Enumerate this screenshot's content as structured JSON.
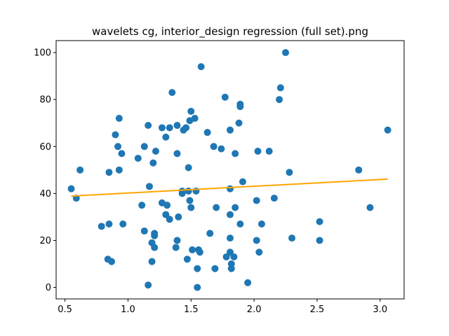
{
  "chart_data": {
    "type": "scatter",
    "title": "wavelets cg, interior_design regression (full set).png",
    "xlabel": "",
    "ylabel": "",
    "xlim": [
      0.43,
      3.19
    ],
    "ylim": [
      -4.9,
      105.1
    ],
    "x_ticks": [
      "0.5",
      "1.0",
      "1.5",
      "2.0",
      "2.5",
      "3.0"
    ],
    "y_ticks": [
      "0",
      "20",
      "40",
      "60",
      "80",
      "100"
    ],
    "grid": false,
    "point_color": "#1f77b4",
    "line_color": "#ffa500",
    "points": [
      [
        0.55,
        42
      ],
      [
        0.59,
        38
      ],
      [
        0.62,
        50
      ],
      [
        0.79,
        26
      ],
      [
        0.84,
        12
      ],
      [
        0.85,
        49
      ],
      [
        0.85,
        27
      ],
      [
        0.87,
        11
      ],
      [
        0.9,
        65
      ],
      [
        0.92,
        60
      ],
      [
        0.93,
        72
      ],
      [
        0.93,
        50
      ],
      [
        0.95,
        57
      ],
      [
        0.96,
        27
      ],
      [
        1.08,
        55
      ],
      [
        1.11,
        35
      ],
      [
        1.13,
        24
      ],
      [
        1.13,
        60
      ],
      [
        1.16,
        1
      ],
      [
        1.16,
        69
      ],
      [
        1.17,
        43
      ],
      [
        1.19,
        19
      ],
      [
        1.19,
        11
      ],
      [
        1.2,
        53
      ],
      [
        1.21,
        23
      ],
      [
        1.21,
        22
      ],
      [
        1.21,
        17
      ],
      [
        1.22,
        58
      ],
      [
        1.27,
        68
      ],
      [
        1.27,
        36
      ],
      [
        1.3,
        64
      ],
      [
        1.3,
        31
      ],
      [
        1.31,
        35
      ],
      [
        1.33,
        29
      ],
      [
        1.33,
        68
      ],
      [
        1.35,
        83
      ],
      [
        1.38,
        17
      ],
      [
        1.39,
        69
      ],
      [
        1.39,
        57
      ],
      [
        1.39,
        20
      ],
      [
        1.4,
        30
      ],
      [
        1.43,
        40
      ],
      [
        1.43,
        41
      ],
      [
        1.44,
        67
      ],
      [
        1.46,
        68
      ],
      [
        1.47,
        12
      ],
      [
        1.48,
        51
      ],
      [
        1.48,
        41
      ],
      [
        1.49,
        71
      ],
      [
        1.49,
        37
      ],
      [
        1.5,
        34
      ],
      [
        1.5,
        75
      ],
      [
        1.51,
        16
      ],
      [
        1.53,
        72
      ],
      [
        1.54,
        41
      ],
      [
        1.55,
        0
      ],
      [
        1.55,
        8
      ],
      [
        1.56,
        16
      ],
      [
        1.57,
        15
      ],
      [
        1.58,
        94
      ],
      [
        1.63,
        66
      ],
      [
        1.65,
        23
      ],
      [
        1.68,
        60
      ],
      [
        1.69,
        8
      ],
      [
        1.7,
        34
      ],
      [
        1.74,
        59
      ],
      [
        1.77,
        81
      ],
      [
        1.78,
        13
      ],
      [
        1.81,
        42
      ],
      [
        1.81,
        67
      ],
      [
        1.81,
        21
      ],
      [
        1.81,
        31
      ],
      [
        1.81,
        15
      ],
      [
        1.82,
        8
      ],
      [
        1.82,
        10
      ],
      [
        1.84,
        13
      ],
      [
        1.85,
        34
      ],
      [
        1.85,
        57
      ],
      [
        1.88,
        70
      ],
      [
        1.89,
        77
      ],
      [
        1.89,
        78
      ],
      [
        1.89,
        27
      ],
      [
        1.91,
        45
      ],
      [
        1.95,
        2
      ],
      [
        2.02,
        37
      ],
      [
        2.02,
        20
      ],
      [
        2.03,
        58
      ],
      [
        2.04,
        15
      ],
      [
        2.06,
        27
      ],
      [
        2.12,
        58
      ],
      [
        2.16,
        38
      ],
      [
        2.2,
        80
      ],
      [
        2.21,
        85
      ],
      [
        2.25,
        100
      ],
      [
        2.28,
        49
      ],
      [
        2.3,
        21
      ],
      [
        2.52,
        28
      ],
      [
        2.52,
        20
      ],
      [
        2.83,
        50
      ],
      [
        2.92,
        34
      ],
      [
        3.06,
        67
      ]
    ],
    "regression_line": {
      "x": [
        0.55,
        3.06
      ],
      "y": [
        38.9,
        46.1
      ]
    }
  }
}
